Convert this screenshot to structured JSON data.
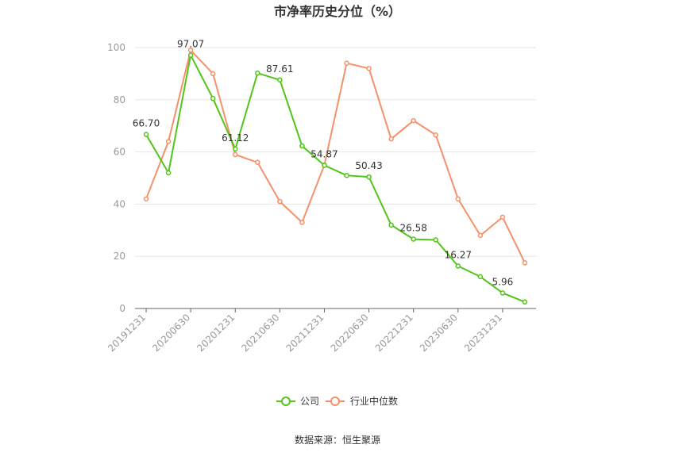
{
  "chart_data": {
    "type": "line",
    "title": "市净率历史分位（%）",
    "x": [
      "20191231",
      "20200331",
      "20200630",
      "20200930",
      "20201231",
      "20210331",
      "20210630",
      "20210930",
      "20211231",
      "20220331",
      "20220630",
      "20220930",
      "20221231",
      "20230331",
      "20230630",
      "20230930",
      "20231231",
      "20240331"
    ],
    "x_tick_labels": [
      "20191231",
      "20200630",
      "20201231",
      "20210630",
      "20211231",
      "20220630",
      "20221231",
      "20230630",
      "20231231"
    ],
    "ylim": [
      0,
      100
    ],
    "y_ticks": [
      "0",
      "20",
      "40",
      "60",
      "80",
      "100"
    ],
    "grid": true,
    "legend_position": "bottom",
    "series": [
      {
        "name": "公司",
        "color": "#52c41a",
        "values": [
          66.7,
          52.0,
          97.07,
          80.5,
          61.12,
          90.2,
          87.61,
          62.3,
          54.87,
          51.0,
          50.43,
          32.0,
          26.58,
          26.3,
          16.27,
          12.2,
          5.96,
          2.5
        ],
        "labels": [
          "66.70",
          null,
          "97.07",
          null,
          "61.12",
          null,
          "87.61",
          null,
          "54.87",
          null,
          "50.43",
          null,
          "26.58",
          null,
          "16.27",
          null,
          "5.96",
          null
        ]
      },
      {
        "name": "行业中位数",
        "color": "#f5916a",
        "values": [
          42.0,
          64.0,
          99.0,
          90.0,
          59.0,
          56.0,
          41.0,
          33.0,
          55.0,
          94.0,
          92.0,
          65.0,
          72.0,
          66.5,
          42.0,
          28.0,
          35.0,
          17.5
        ],
        "labels": []
      }
    ]
  },
  "footer": {
    "source": "数据来源：恒生聚源"
  }
}
